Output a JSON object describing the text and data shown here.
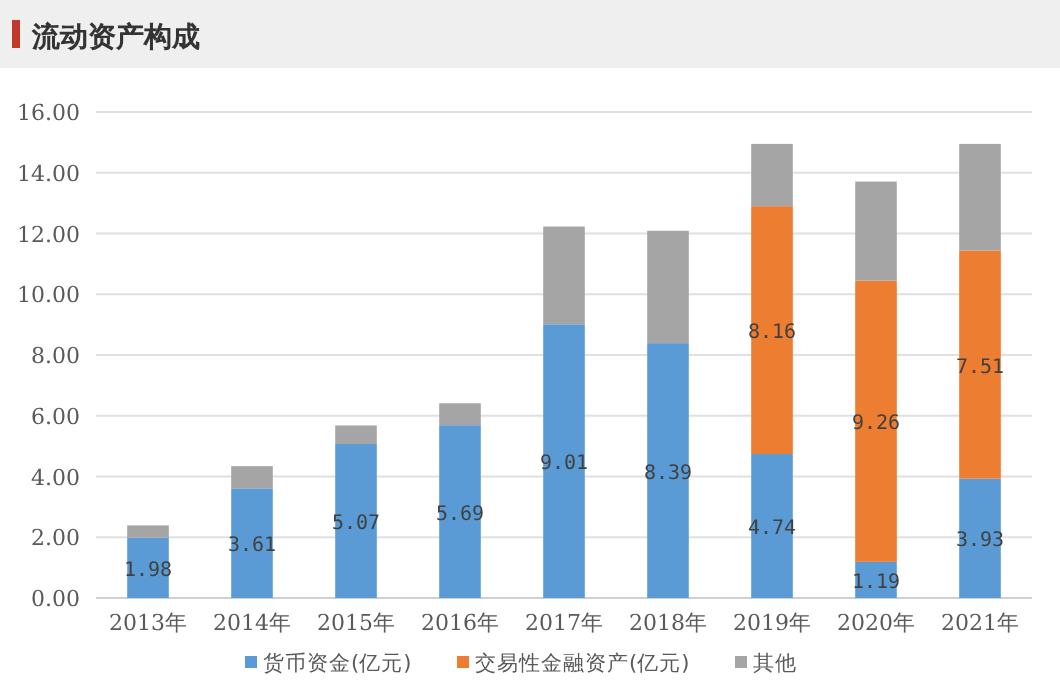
{
  "chart_data": {
    "type": "bar",
    "title": "流动资产构成",
    "stacked": true,
    "categories": [
      "2013年",
      "2014年",
      "2015年",
      "2016年",
      "2017年",
      "2018年",
      "2019年",
      "2020年",
      "2021年"
    ],
    "series": [
      {
        "name": "货币资金(亿元)",
        "color": "#5b9bd5",
        "values": [
          1.98,
          3.61,
          5.07,
          5.69,
          9.01,
          8.39,
          4.74,
          1.19,
          3.93
        ],
        "value_labels": [
          "1.98",
          "3.61",
          "5.07",
          "5.69",
          "9.01",
          "8.39",
          "4.74",
          "1.19",
          "3.93"
        ]
      },
      {
        "name": "交易性金融资产(亿元)",
        "color": "#ed7d31",
        "values": [
          null,
          null,
          null,
          null,
          null,
          null,
          8.16,
          9.26,
          7.51
        ],
        "value_labels": [
          null,
          null,
          null,
          null,
          null,
          null,
          "8.16",
          "9.26",
          "7.51"
        ]
      },
      {
        "name": "其他",
        "color": "#a5a5a5",
        "values": [
          0.41,
          0.73,
          0.61,
          0.72,
          3.22,
          3.7,
          2.05,
          3.26,
          3.51
        ]
      }
    ],
    "ylim": [
      0,
      16
    ],
    "yticks": [
      {
        "value": 0,
        "label": "0.00"
      },
      {
        "value": 2,
        "label": "2.00"
      },
      {
        "value": 4,
        "label": "4.00"
      },
      {
        "value": 6,
        "label": "6.00"
      },
      {
        "value": 8,
        "label": "8.00"
      },
      {
        "value": 10,
        "label": "10.00"
      },
      {
        "value": 12,
        "label": "12.00"
      },
      {
        "value": 14,
        "label": "14.00"
      },
      {
        "value": 16,
        "label": "16.00"
      }
    ],
    "grid": "y",
    "legend": "bottom"
  }
}
